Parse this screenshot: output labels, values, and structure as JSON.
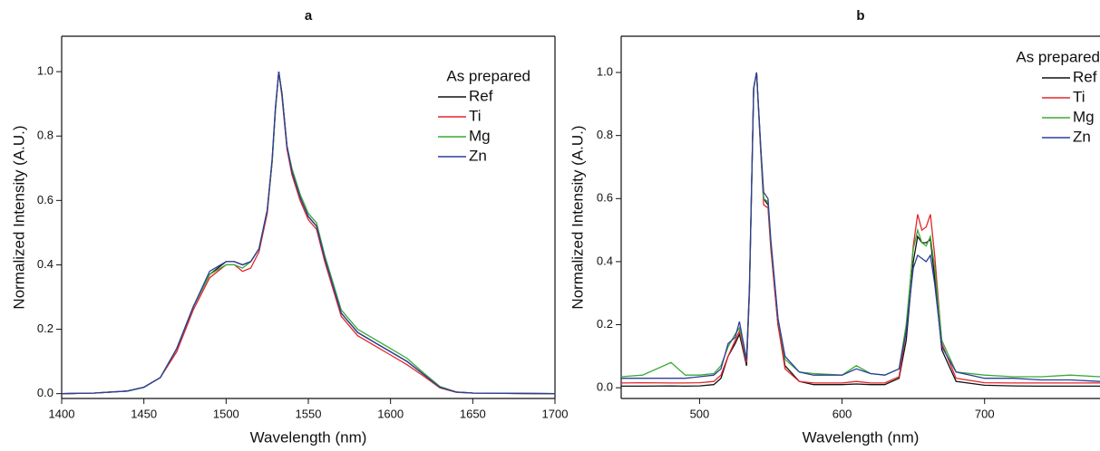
{
  "chart_data": [
    {
      "type": "line",
      "title": "a",
      "x_label": "Wavelength (nm)",
      "y_label": "Normalized Intensity (A.U.)",
      "legend": "upper right",
      "legend_title": "As prepared",
      "xlim": [
        1400,
        1700
      ],
      "ylim": [
        -0.015,
        1.11
      ],
      "xticks": [
        1400,
        1450,
        1500,
        1550,
        1600,
        1650,
        1700
      ],
      "yticks": [
        {
          "value": 0,
          "label": "0.0"
        },
        0.2,
        0.4,
        0.6,
        0.8,
        {
          "value": 1,
          "label": "1.0"
        }
      ],
      "x": [
        1400,
        1420,
        1440,
        1450,
        1460,
        1470,
        1480,
        1490,
        1500,
        1505,
        1510,
        1515,
        1520,
        1525,
        1528,
        1530,
        1532,
        1534,
        1537,
        1540,
        1545,
        1550,
        1555,
        1560,
        1570,
        1580,
        1590,
        1600,
        1610,
        1620,
        1630,
        1640,
        1650,
        1670,
        1700
      ],
      "series": [
        {
          "name": "Ref",
          "color": "#111111",
          "values": [
            0,
            0.002,
            0.008,
            0.02,
            0.05,
            0.14,
            0.27,
            0.37,
            0.41,
            0.41,
            0.4,
            0.41,
            0.45,
            0.57,
            0.72,
            0.88,
            1.0,
            0.93,
            0.77,
            0.69,
            0.61,
            0.55,
            0.52,
            0.42,
            0.25,
            0.19,
            0.16,
            0.13,
            0.1,
            0.06,
            0.02,
            0.005,
            0.002,
            0.001,
            0
          ]
        },
        {
          "name": "Ti",
          "color": "#e3262b",
          "values": [
            0,
            0.002,
            0.008,
            0.02,
            0.05,
            0.13,
            0.26,
            0.36,
            0.4,
            0.4,
            0.38,
            0.39,
            0.44,
            0.56,
            0.72,
            0.88,
            1.0,
            0.92,
            0.76,
            0.68,
            0.6,
            0.54,
            0.51,
            0.41,
            0.24,
            0.18,
            0.15,
            0.12,
            0.09,
            0.055,
            0.018,
            0.004,
            0.002,
            0.001,
            0
          ]
        },
        {
          "name": "Mg",
          "color": "#3aaa35",
          "values": [
            0,
            0.002,
            0.008,
            0.02,
            0.05,
            0.14,
            0.27,
            0.37,
            0.4,
            0.4,
            0.39,
            0.41,
            0.45,
            0.57,
            0.72,
            0.88,
            1.0,
            0.93,
            0.77,
            0.7,
            0.62,
            0.56,
            0.53,
            0.43,
            0.26,
            0.2,
            0.17,
            0.14,
            0.11,
            0.065,
            0.022,
            0.005,
            0.002,
            0.001,
            0
          ]
        },
        {
          "name": "Zn",
          "color": "#2c3e9c",
          "values": [
            0,
            0.002,
            0.008,
            0.02,
            0.05,
            0.14,
            0.27,
            0.38,
            0.41,
            0.41,
            0.4,
            0.41,
            0.45,
            0.57,
            0.73,
            0.89,
            1.0,
            0.93,
            0.77,
            0.69,
            0.61,
            0.55,
            0.52,
            0.42,
            0.25,
            0.19,
            0.16,
            0.13,
            0.1,
            0.06,
            0.02,
            0.005,
            0.002,
            0.001,
            0
          ]
        }
      ]
    },
    {
      "type": "line",
      "title": "b",
      "x_label": "Wavelength (nm)",
      "y_label": "Normalized Intensity (A.U.)",
      "legend": "upper right",
      "legend_title": "As prepared",
      "xlim": [
        445,
        781
      ],
      "ylim": [
        -0.034,
        1.115
      ],
      "xticks": [
        500,
        600,
        700
      ],
      "yticks": [
        {
          "value": 0,
          "label": "0.0"
        },
        0.2,
        0.4,
        0.6,
        0.8,
        {
          "value": 1,
          "label": "1.0"
        }
      ],
      "x": [
        445,
        460,
        480,
        490,
        500,
        510,
        515,
        520,
        525,
        528,
        530,
        533,
        535,
        538,
        540,
        543,
        545,
        548,
        550,
        555,
        560,
        570,
        580,
        600,
        610,
        620,
        630,
        640,
        645,
        650,
        653,
        656,
        659,
        662,
        665,
        670,
        680,
        700,
        720,
        740,
        760,
        781
      ],
      "series": [
        {
          "name": "Ref",
          "color": "#111111",
          "values": [
            0.005,
            0.005,
            0.006,
            0.005,
            0.006,
            0.01,
            0.03,
            0.1,
            0.14,
            0.17,
            0.13,
            0.07,
            0.3,
            0.95,
            1.0,
            0.75,
            0.6,
            0.58,
            0.45,
            0.2,
            0.07,
            0.02,
            0.01,
            0.01,
            0.012,
            0.01,
            0.01,
            0.03,
            0.15,
            0.4,
            0.48,
            0.46,
            0.46,
            0.47,
            0.35,
            0.12,
            0.02,
            0.008,
            0.006,
            0.005,
            0.005,
            0.005
          ]
        },
        {
          "name": "Ti",
          "color": "#e3262b",
          "values": [
            0.015,
            0.016,
            0.015,
            0.015,
            0.016,
            0.02,
            0.04,
            0.1,
            0.15,
            0.18,
            0.14,
            0.08,
            0.3,
            0.95,
            1.0,
            0.74,
            0.58,
            0.57,
            0.44,
            0.2,
            0.06,
            0.02,
            0.015,
            0.015,
            0.02,
            0.015,
            0.015,
            0.035,
            0.18,
            0.45,
            0.55,
            0.5,
            0.51,
            0.55,
            0.42,
            0.14,
            0.03,
            0.016,
            0.015,
            0.015,
            0.015,
            0.015
          ]
        },
        {
          "name": "Mg",
          "color": "#3aaa35",
          "values": [
            0.035,
            0.04,
            0.08,
            0.04,
            0.04,
            0.045,
            0.07,
            0.13,
            0.17,
            0.19,
            0.15,
            0.09,
            0.31,
            0.95,
            1.0,
            0.75,
            0.6,
            0.59,
            0.46,
            0.22,
            0.09,
            0.05,
            0.045,
            0.04,
            0.07,
            0.045,
            0.04,
            0.06,
            0.2,
            0.44,
            0.5,
            0.46,
            0.45,
            0.48,
            0.38,
            0.15,
            0.05,
            0.04,
            0.035,
            0.035,
            0.04,
            0.035
          ]
        },
        {
          "name": "Zn",
          "color": "#2c3e9c",
          "values": [
            0.03,
            0.03,
            0.03,
            0.03,
            0.035,
            0.04,
            0.06,
            0.14,
            0.16,
            0.21,
            0.16,
            0.09,
            0.32,
            0.95,
            1.0,
            0.76,
            0.62,
            0.6,
            0.47,
            0.22,
            0.1,
            0.05,
            0.04,
            0.04,
            0.06,
            0.045,
            0.04,
            0.06,
            0.18,
            0.38,
            0.42,
            0.41,
            0.4,
            0.42,
            0.33,
            0.13,
            0.05,
            0.03,
            0.03,
            0.025,
            0.025,
            0.02
          ]
        }
      ]
    }
  ]
}
